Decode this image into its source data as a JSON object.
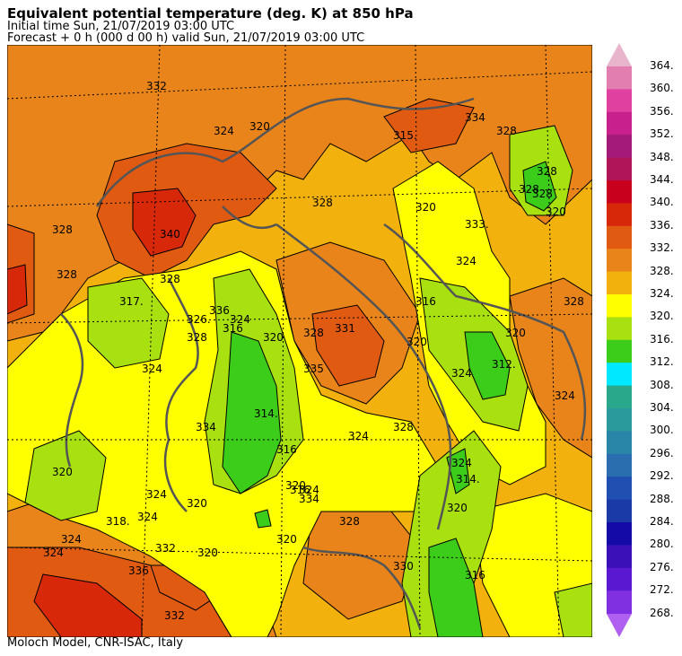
{
  "header": {
    "title": "Equivalent potential temperature (deg. K) at 850 hPa",
    "initial_time": "Initial time  Sun, 21/07/2019  03:00 UTC",
    "forecast": "Forecast  +   0 h  (000 d 00 h)  valid Sun, 21/07/2019 03:00 UTC"
  },
  "footer": {
    "credit": "Moloch Model, CNR-ISAC, Italy"
  },
  "colorbar": {
    "levels": [
      "364.",
      "360.",
      "356.",
      "352.",
      "348.",
      "344.",
      "340.",
      "336.",
      "332.",
      "328.",
      "324.",
      "320.",
      "316.",
      "312.",
      "308.",
      "304.",
      "300.",
      "296.",
      "292.",
      "288.",
      "284.",
      "280.",
      "276.",
      "272.",
      "268."
    ],
    "colors": [
      "#e27fb0",
      "#e040a0",
      "#c8218e",
      "#a41a7a",
      "#b0155a",
      "#c8001e",
      "#d8280a",
      "#e05a12",
      "#e8841a",
      "#f2b10c",
      "#ffff00",
      "#a8e010",
      "#3ccc1a",
      "#00e8ff",
      "#2aa88c",
      "#2a9a9c",
      "#2a86a8",
      "#2a6eb0",
      "#1f4fb0",
      "#1a3aa8",
      "#140aa8",
      "#3c10b8",
      "#5a18d0",
      "#8030e0"
    ]
  },
  "map_labels": [
    "332",
    "324",
    "320",
    "328",
    "340",
    "317.",
    "328",
    "328",
    "326.",
    "324",
    "316",
    "320",
    "324",
    "328",
    "336",
    "334",
    "331",
    "335",
    "328",
    "314.",
    "316",
    "320",
    "334",
    "324",
    "324",
    "320",
    "324",
    "320",
    "318.",
    "324",
    "324",
    "332",
    "332",
    "336",
    "320",
    "316",
    "324",
    "328",
    "330",
    "316",
    "320",
    "314.",
    "324",
    "320",
    "328",
    "312.",
    "320",
    "328",
    "324",
    "328",
    "320",
    "333.",
    "324",
    "328",
    "320",
    "328",
    "315.",
    "334",
    "328",
    "324",
    "328",
    "316",
    "320"
  ]
}
